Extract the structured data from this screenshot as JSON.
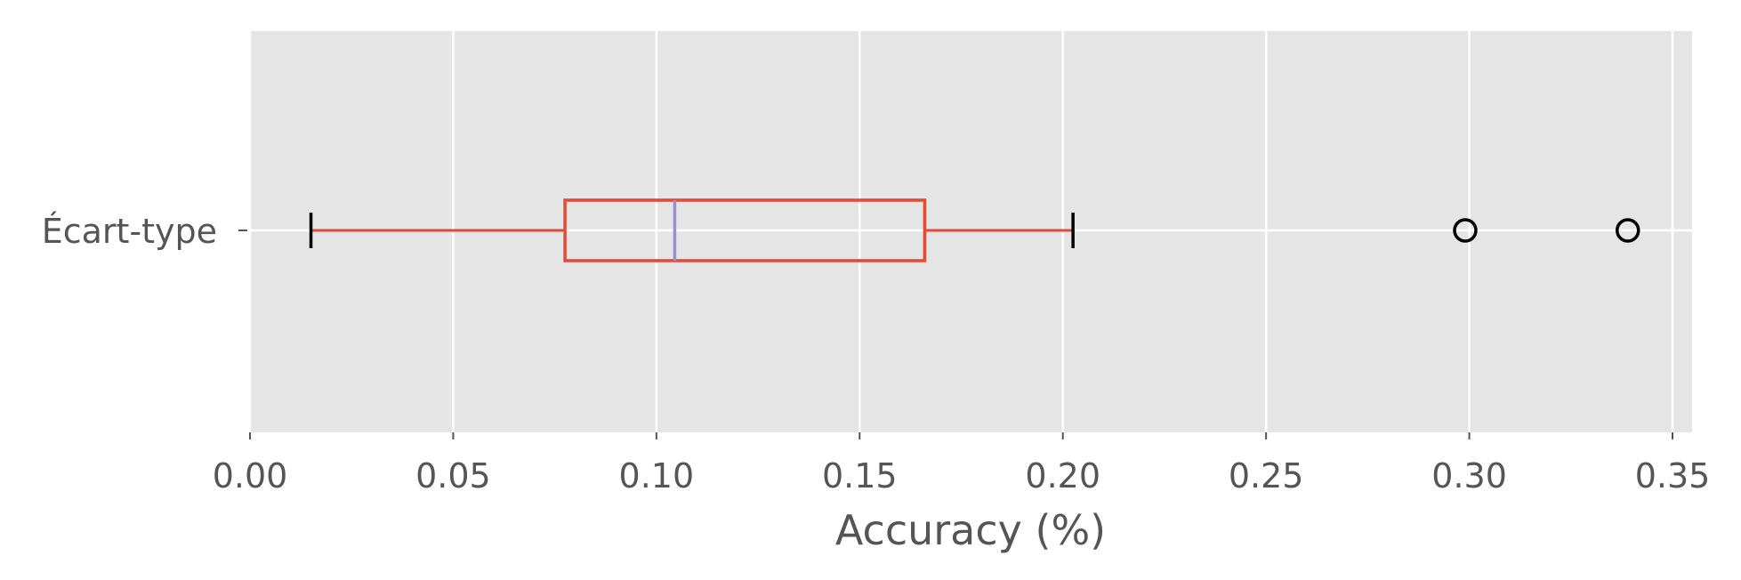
{
  "chart_data": {
    "type": "boxplot",
    "orientation": "horizontal",
    "xlabel": "Accuracy (%)",
    "ylabel": "",
    "xlim": [
      0.0,
      0.355
    ],
    "x_ticks": [
      0.0,
      0.05,
      0.1,
      0.15,
      0.2,
      0.25,
      0.3,
      0.35
    ],
    "x_tick_labels": [
      "0.00",
      "0.05",
      "0.10",
      "0.15",
      "0.20",
      "0.25",
      "0.30",
      "0.35"
    ],
    "grid": true,
    "categories": [
      "Écart-type"
    ],
    "boxes": [
      {
        "label": "Écart-type",
        "whisker_low": 0.015,
        "q1": 0.0775,
        "median": 0.1045,
        "q3": 0.166,
        "whisker_high": 0.2025,
        "outliers": [
          0.299,
          0.339
        ]
      }
    ],
    "colors": {
      "background": "#e5e5e5",
      "grid": "#ffffff",
      "box": "#e24a33",
      "median": "#988ed5",
      "cap": "#000000",
      "outlier": "#000000",
      "text": "#555555"
    }
  }
}
